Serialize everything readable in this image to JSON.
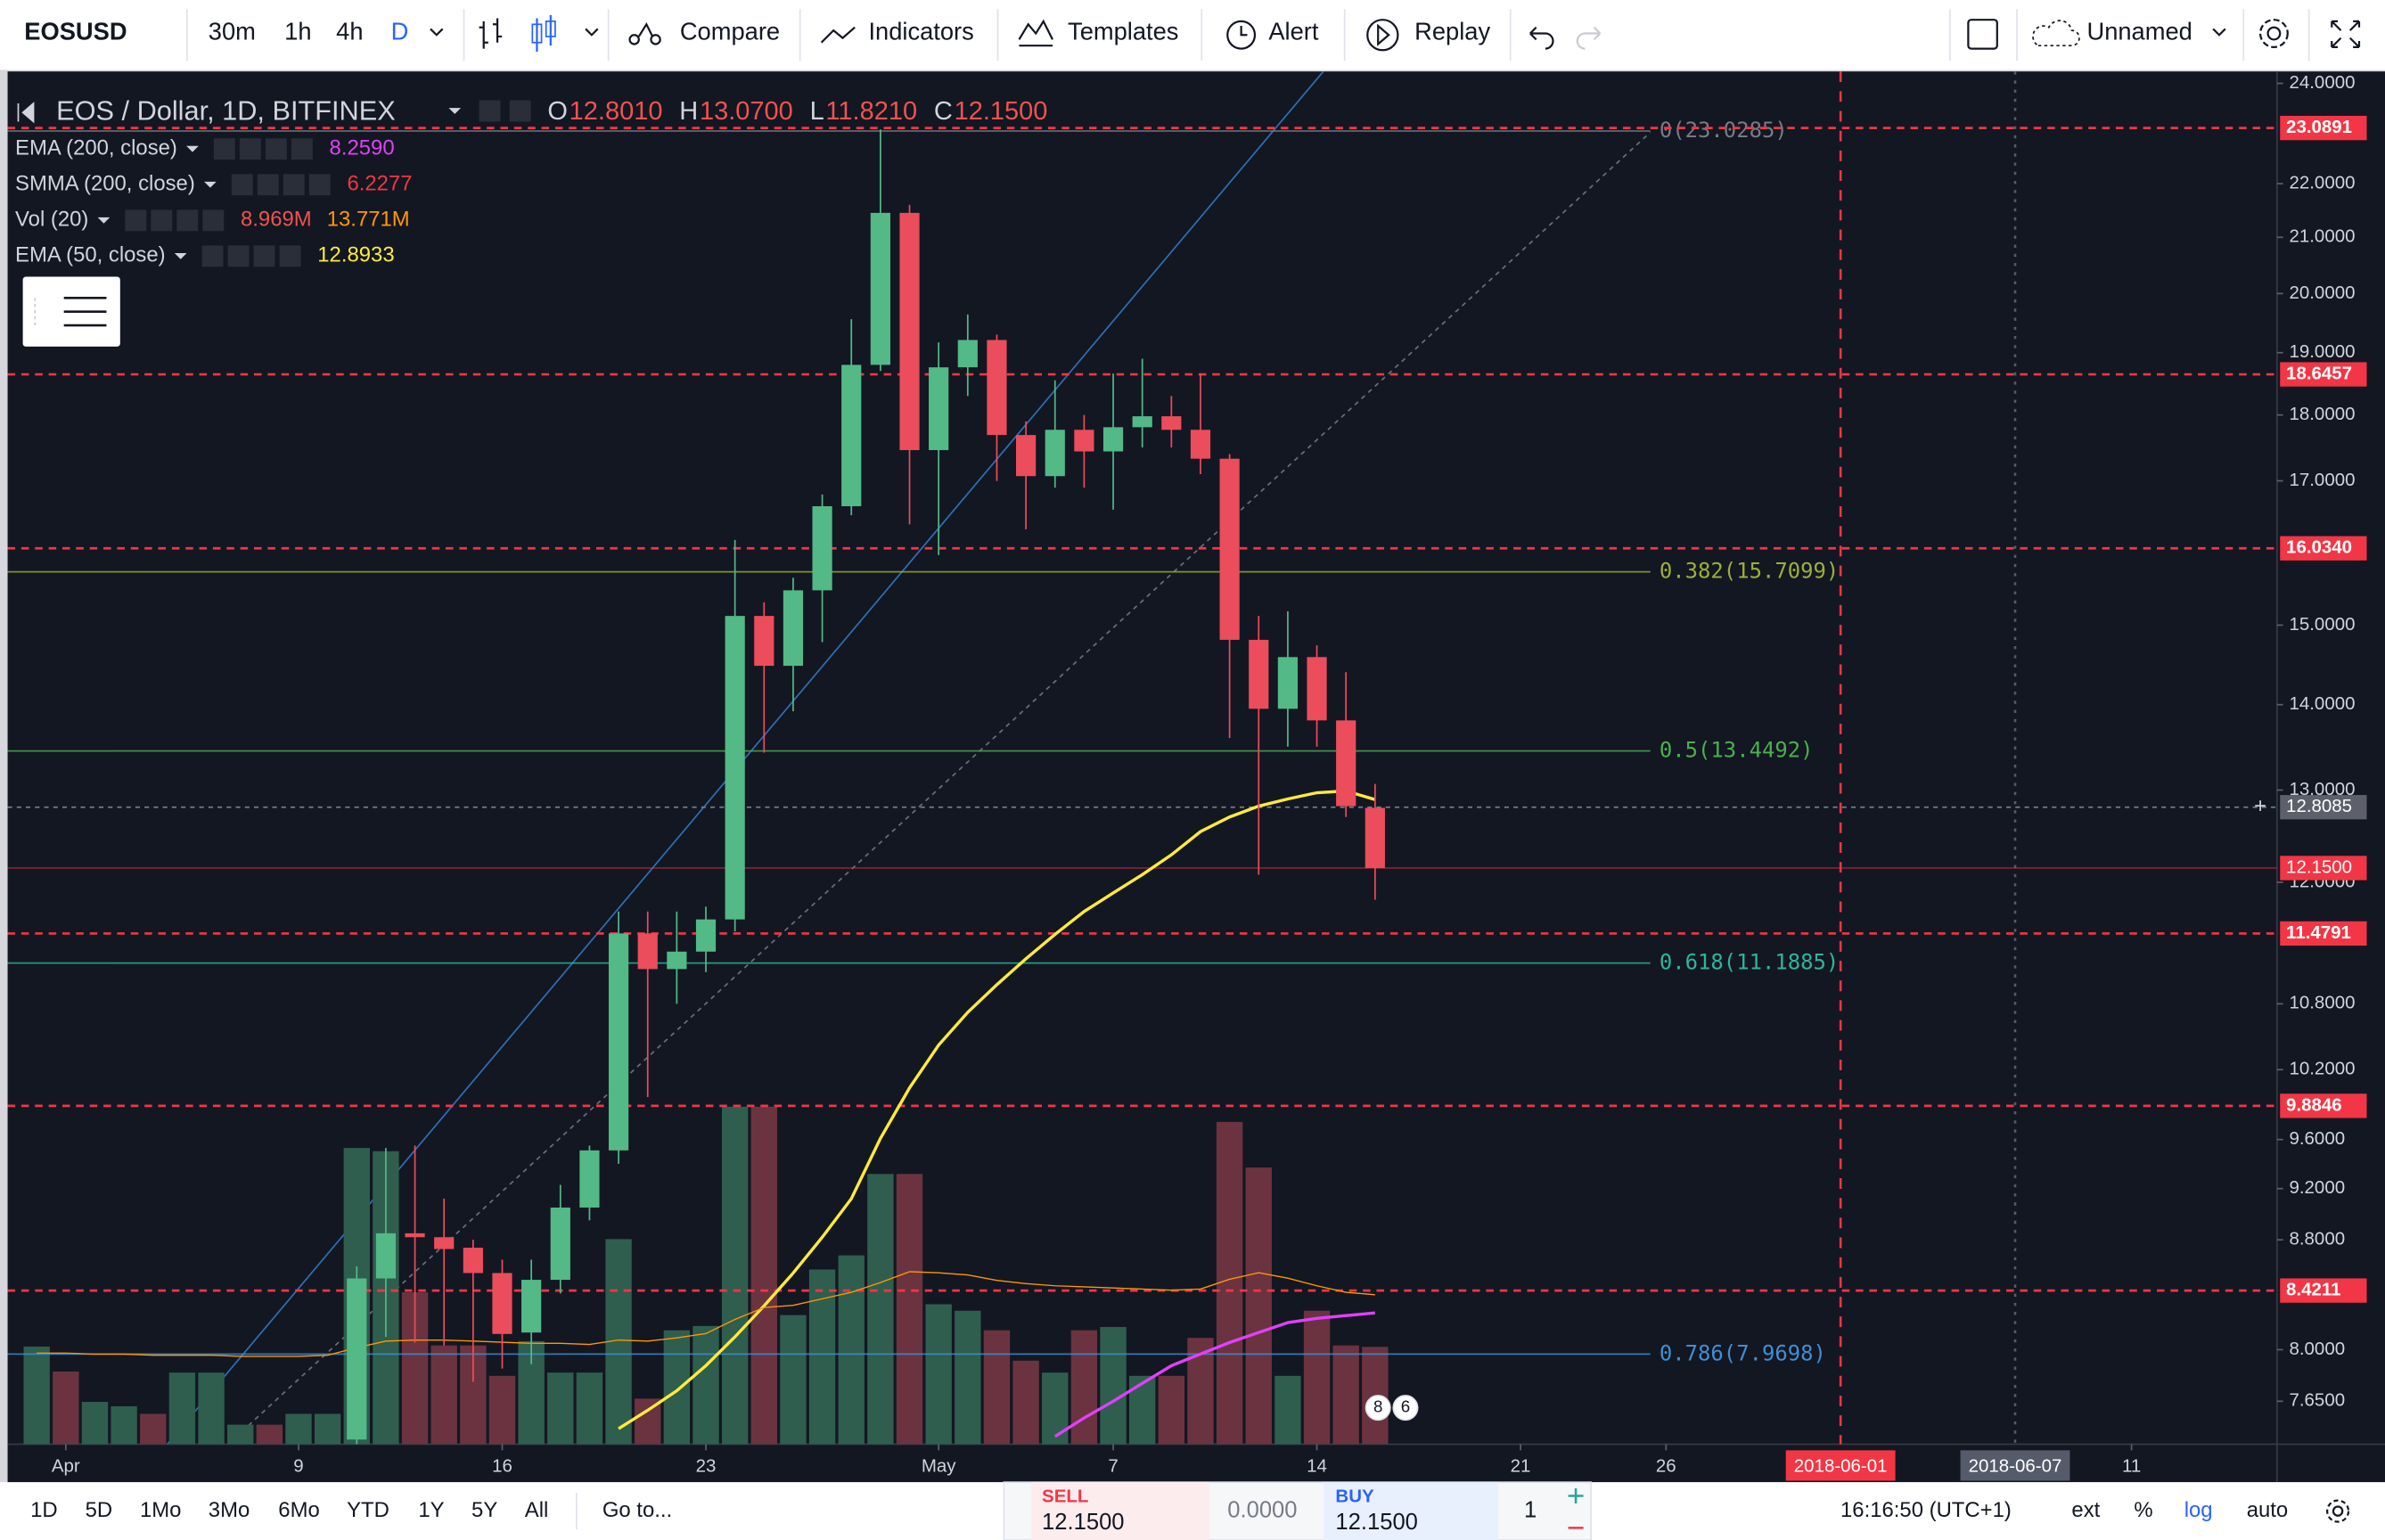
{
  "toolbar": {
    "symbol": "EOSUSD",
    "intervals": [
      "30m",
      "1h",
      "4h",
      "D"
    ],
    "compare": "Compare",
    "indicators": "Indicators",
    "templates": "Templates",
    "alert": "Alert",
    "replay": "Replay",
    "layout": "Unnamed"
  },
  "legend": {
    "title": "EOS / Dollar, 1D, BITFINEX",
    "ohlc": [
      {
        "key": "O",
        "text": "12.8010"
      },
      {
        "key": "H",
        "text": "13.0700"
      },
      {
        "key": "L",
        "text": "11.8210"
      },
      {
        "key": "C",
        "text": "12.1500"
      }
    ],
    "ohlc_color": "#ef5350",
    "rows": [
      {
        "name": "EMA (200, close)",
        "labels": [
          {
            "text": "8.2590",
            "color": "#e040fb"
          }
        ]
      },
      {
        "name": "SMMA (200, close)",
        "labels": [
          {
            "text": "6.2277",
            "color": "#f23645"
          }
        ]
      },
      {
        "name": "Vol (20)",
        "labels": [
          {
            "text": "8.969M",
            "color": "#ef5350"
          },
          {
            "text": "13.771M",
            "color": "#ff9800"
          }
        ]
      },
      {
        "name": "EMA (50, close)",
        "labels": [
          {
            "text": "12.8933",
            "color": "#ffeb3b"
          }
        ]
      }
    ]
  },
  "chart_data": {
    "type": "candlestick",
    "log": true,
    "grid": false,
    "up_color": "#53b987",
    "down_color": "#eb4d5c",
    "x": [
      "2018-04-11",
      "2018-04-12",
      "2018-04-13",
      "2018-04-14",
      "2018-04-15",
      "2018-04-16",
      "2018-04-17",
      "2018-04-18",
      "2018-04-19",
      "2018-04-20",
      "2018-04-21",
      "2018-04-22",
      "2018-04-23",
      "2018-04-24",
      "2018-04-25",
      "2018-04-26",
      "2018-04-27",
      "2018-04-28",
      "2018-04-29",
      "2018-04-30",
      "2018-05-01",
      "2018-05-02",
      "2018-05-03",
      "2018-05-04",
      "2018-05-05",
      "2018-05-06",
      "2018-05-07",
      "2018-05-08",
      "2018-05-09",
      "2018-05-10",
      "2018-05-11",
      "2018-05-12",
      "2018-05-13",
      "2018-05-14",
      "2018-05-15",
      "2018-05-16"
    ],
    "open": [
      7.4,
      8.51,
      8.85,
      8.82,
      8.74,
      8.55,
      8.12,
      8.5,
      9.05,
      9.51,
      11.48,
      11.13,
      11.3,
      11.62,
      15.12,
      14.48,
      15.46,
      16.63,
      18.8,
      21.45,
      17.46,
      18.76,
      19.21,
      17.69,
      17.07,
      17.77,
      17.44,
      17.81,
      17.98,
      17.77,
      17.33,
      14.81,
      13.95,
      14.59,
      13.81,
      12.801
    ],
    "high": [
      8.6,
      9.53,
      9.55,
      9.12,
      8.8,
      8.65,
      8.65,
      9.23,
      9.55,
      11.7,
      11.7,
      11.7,
      11.75,
      16.15,
      15.3,
      15.63,
      16.8,
      19.56,
      23.06,
      21.6,
      19.17,
      19.64,
      19.3,
      17.9,
      18.55,
      18.0,
      18.66,
      18.9,
      18.3,
      18.66,
      17.4,
      15.12,
      15.18,
      14.74,
      14.4,
      13.07
    ],
    "low": [
      7.3,
      8.09,
      8.05,
      8.03,
      7.78,
      7.87,
      7.9,
      8.4,
      8.95,
      9.4,
      9.96,
      10.8,
      11.1,
      11.5,
      13.43,
      13.92,
      14.78,
      16.5,
      18.7,
      16.37,
      15.94,
      18.3,
      17.0,
      16.3,
      16.9,
      16.9,
      16.58,
      17.5,
      17.5,
      17.1,
      13.6,
      12.08,
      13.5,
      13.5,
      12.7,
      11.821
    ],
    "close": [
      8.51,
      8.85,
      8.82,
      8.73,
      8.55,
      8.11,
      8.5,
      9.05,
      9.51,
      11.48,
      11.13,
      11.3,
      11.62,
      15.12,
      14.48,
      15.46,
      16.63,
      18.8,
      21.45,
      17.46,
      18.76,
      19.21,
      17.69,
      17.07,
      17.77,
      17.44,
      17.81,
      17.98,
      17.77,
      17.33,
      14.81,
      13.95,
      14.59,
      13.81,
      12.82,
      12.15
    ],
    "xlim": [
      "2018-03-30",
      "2018-06-16"
    ],
    "xticks": [
      {
        "value": "2018-04-01",
        "label": "Apr"
      },
      {
        "value": "2018-04-09",
        "label": "9"
      },
      {
        "value": "2018-04-16",
        "label": "16"
      },
      {
        "value": "2018-04-23",
        "label": "23"
      },
      {
        "value": "2018-05-01",
        "label": "May"
      },
      {
        "value": "2018-05-07",
        "label": "7"
      },
      {
        "value": "2018-05-14",
        "label": "14"
      },
      {
        "value": "2018-05-21",
        "label": "21"
      },
      {
        "value": "2018-05-26",
        "label": "26"
      },
      {
        "value": "2018-06-11",
        "label": "11"
      }
    ],
    "vlines": [
      {
        "label": "2018-06-01",
        "color": "#f23645",
        "dash": "7,6"
      },
      {
        "label": "2018-06-07",
        "color": "#555b6b",
        "dash": "2,4"
      }
    ],
    "ylim": [
      7.37,
      24.25
    ],
    "yticks": [
      {
        "value": 24,
        "label": "24.0000"
      },
      {
        "value": 22,
        "label": "22.0000"
      },
      {
        "value": 21,
        "label": "21.0000"
      },
      {
        "value": 20,
        "label": "20.0000"
      },
      {
        "value": 19,
        "label": "19.0000"
      },
      {
        "value": 18,
        "label": "18.0000"
      },
      {
        "value": 17,
        "label": "17.0000"
      },
      {
        "value": 15,
        "label": "15.0000"
      },
      {
        "value": 14,
        "label": "14.0000"
      },
      {
        "value": 13,
        "label": "13.0000"
      },
      {
        "value": 12,
        "label": "12.0000"
      },
      {
        "value": 10.8,
        "label": "10.8000"
      },
      {
        "value": 10.2,
        "label": "10.2000"
      },
      {
        "value": 9.6,
        "label": "9.6000"
      },
      {
        "value": 9.2,
        "label": "9.2000"
      },
      {
        "value": 8.8,
        "label": "8.8000"
      },
      {
        "value": 8,
        "label": "8.0000"
      },
      {
        "value": 7.65,
        "label": "7.6500"
      }
    ],
    "levels": [
      {
        "value": 23.0891,
        "label": "23.0891"
      },
      {
        "value": 18.6457,
        "label": "18.6457"
      },
      {
        "value": 16.034,
        "label": "16.0340"
      },
      {
        "value": 11.4791,
        "label": "11.4791"
      },
      {
        "value": 9.8846,
        "label": "9.8846"
      },
      {
        "value": 8.4211,
        "label": "8.4211"
      }
    ],
    "level_color": "#f23645",
    "last_price": {
      "value": 12.15,
      "label": "12.1500",
      "color": "#f23645"
    },
    "crosshair": {
      "value": 12.8085,
      "label": "12.8085",
      "color": "#5d606b"
    },
    "fib": [
      {
        "value": 23.0285,
        "label": "0(23.0285)",
        "color": "#787b86"
      },
      {
        "value": 15.7099,
        "label": "0.382(15.7099)",
        "color": "#9eae3a"
      },
      {
        "value": 13.4492,
        "label": "0.5(13.4492)",
        "color": "#4caf50"
      },
      {
        "value": 11.1885,
        "label": "0.618(11.1885)",
        "color": "#2fb59c"
      },
      {
        "value": 7.9698,
        "label": "0.786(7.9698)",
        "color": "#3f8fd6"
      }
    ],
    "series": [
      {
        "color": "#ffeb3b",
        "width": 2,
        "x": [
          "2018-04-20",
          "2018-04-21",
          "2018-04-22",
          "2018-04-23",
          "2018-04-24",
          "2018-04-25",
          "2018-04-26",
          "2018-04-27",
          "2018-04-28",
          "2018-04-29",
          "2018-04-30",
          "2018-05-01",
          "2018-05-02",
          "2018-05-03",
          "2018-05-04",
          "2018-05-05",
          "2018-05-06",
          "2018-05-07",
          "2018-05-08",
          "2018-05-09",
          "2018-05-10",
          "2018-05-11",
          "2018-05-12",
          "2018-05-13",
          "2018-05-14",
          "2018-05-15",
          "2018-05-16"
        ],
        "values": [
          7.47,
          7.59,
          7.72,
          7.89,
          8.09,
          8.31,
          8.55,
          8.82,
          9.12,
          9.61,
          10.04,
          10.42,
          10.72,
          10.98,
          11.23,
          11.47,
          11.7,
          11.89,
          12.08,
          12.29,
          12.54,
          12.7,
          12.82,
          12.9,
          12.97,
          12.99,
          12.8933
        ]
      },
      {
        "color": "#e040fb",
        "width": 2,
        "x": [
          "2018-05-05",
          "2018-05-06",
          "2018-05-07",
          "2018-05-08",
          "2018-05-09",
          "2018-05-10",
          "2018-05-11",
          "2018-05-12",
          "2018-05-13",
          "2018-05-14",
          "2018-05-15",
          "2018-05-16"
        ],
        "values": [
          7.42,
          7.54,
          7.65,
          7.77,
          7.89,
          7.97,
          8.05,
          8.12,
          8.19,
          8.22,
          8.24,
          8.259
        ]
      },
      {
        "color": "#ff9800",
        "width": 0.8,
        "axis": "volume",
        "x": [
          "2018-03-31",
          "2018-04-01",
          "2018-04-02",
          "2018-04-03",
          "2018-04-04",
          "2018-04-05",
          "2018-04-06",
          "2018-04-07",
          "2018-04-08",
          "2018-04-09",
          "2018-04-10",
          "2018-04-11",
          "2018-04-12",
          "2018-04-13",
          "2018-04-14",
          "2018-04-15",
          "2018-04-16",
          "2018-04-17",
          "2018-04-18",
          "2018-04-19",
          "2018-04-20",
          "2018-04-21",
          "2018-04-22",
          "2018-04-23",
          "2018-04-24",
          "2018-04-25",
          "2018-04-26",
          "2018-04-27",
          "2018-04-28",
          "2018-04-29",
          "2018-04-30",
          "2018-05-01",
          "2018-05-02",
          "2018-05-03",
          "2018-05-04",
          "2018-05-05",
          "2018-05-06",
          "2018-05-07",
          "2018-05-08",
          "2018-05-09",
          "2018-05-10",
          "2018-05-11",
          "2018-05-12",
          "2018-05-13",
          "2018-05-14",
          "2018-05-15",
          "2018-05-16"
        ],
        "values": [
          8.4,
          8.4,
          8.3,
          8.3,
          8.2,
          8.2,
          8.2,
          8.1,
          8.1,
          8.1,
          8.2,
          8.9,
          9.5,
          9.6,
          9.6,
          9.5,
          9.4,
          9.3,
          9.3,
          9.2,
          9.6,
          9.5,
          9.8,
          10.2,
          11.5,
          12.6,
          12.8,
          13.4,
          14.0,
          14.9,
          15.9,
          15.8,
          15.6,
          15.1,
          14.8,
          14.6,
          14.5,
          14.4,
          14.3,
          14.2,
          14.3,
          15.2,
          15.8,
          15.3,
          14.6,
          14.0,
          13.771
        ]
      }
    ],
    "volume": {
      "ylim": [
        0,
        126.5
      ],
      "x": [
        "2018-03-31",
        "2018-04-01",
        "2018-04-02",
        "2018-04-03",
        "2018-04-04",
        "2018-04-05",
        "2018-04-06",
        "2018-04-07",
        "2018-04-08",
        "2018-04-09",
        "2018-04-10",
        "2018-04-11",
        "2018-04-12",
        "2018-04-13",
        "2018-04-14",
        "2018-04-15",
        "2018-04-16",
        "2018-04-17",
        "2018-04-18",
        "2018-04-19",
        "2018-04-20",
        "2018-04-21",
        "2018-04-22",
        "2018-04-23",
        "2018-04-24",
        "2018-04-25",
        "2018-04-26",
        "2018-04-27",
        "2018-04-28",
        "2018-04-29",
        "2018-04-30",
        "2018-05-01",
        "2018-05-02",
        "2018-05-03",
        "2018-05-04",
        "2018-05-05",
        "2018-05-06",
        "2018-05-07",
        "2018-05-08",
        "2018-05-09",
        "2018-05-10",
        "2018-05-11",
        "2018-05-12",
        "2018-05-13",
        "2018-05-14",
        "2018-05-15",
        "2018-05-16"
      ],
      "values": [
        9.0,
        6.7,
        3.9,
        3.5,
        2.8,
        6.6,
        6.6,
        1.8,
        1.8,
        2.8,
        2.8,
        27.3,
        27.0,
        14.0,
        9.1,
        9.1,
        6.3,
        9.5,
        6.6,
        6.6,
        18.9,
        4.2,
        10.5,
        10.9,
        31.1,
        31.1,
        11.9,
        16.1,
        17.4,
        24.9,
        24.9,
        12.9,
        12.3,
        10.5,
        7.7,
        6.6,
        10.5,
        10.8,
        6.3,
        6.3,
        9.8,
        29.7,
        25.5,
        6.3,
        12.3,
        9.1,
        8.969
      ],
      "colors": [
        "#2f5e4e",
        "#6b3340",
        "#2f5e4e",
        "#2f5e4e",
        "#6b3340",
        "#2f5e4e",
        "#2f5e4e",
        "#2f5e4e",
        "#6b3340",
        "#2f5e4e",
        "#2f5e4e",
        "#2f5e4e",
        "#2f5e4e",
        "#6b3340",
        "#6b3340",
        "#6b3340",
        "#6b3340",
        "#2f5e4e",
        "#2f5e4e",
        "#2f5e4e",
        "#2f5e4e",
        "#6b3340",
        "#2f5e4e",
        "#2f5e4e",
        "#2f5e4e",
        "#6b3340",
        "#2f5e4e",
        "#2f5e4e",
        "#2f5e4e",
        "#2f5e4e",
        "#6b3340",
        "#2f5e4e",
        "#2f5e4e",
        "#6b3340",
        "#6b3340",
        "#2f5e4e",
        "#6b3340",
        "#2f5e4e",
        "#2f5e4e",
        "#6b3340",
        "#6b3340",
        "#6b3340",
        "#6b3340",
        "#2f5e4e",
        "#6b3340",
        "#6b3340",
        "#6b3340"
      ]
    },
    "event_badges": [
      "8",
      "6"
    ]
  },
  "bottom": {
    "ranges": [
      "1D",
      "5D",
      "1Mo",
      "3Mo",
      "6Mo",
      "YTD",
      "1Y",
      "5Y",
      "All"
    ],
    "goto": "Go to...",
    "sell": "SELL",
    "sell_price": "12.1500",
    "spread": "0.0000",
    "buy": "BUY",
    "buy_price": "12.1500",
    "quantity": "1",
    "time": "16:16:50 (UTC+1)",
    "ext": "ext",
    "percent": "%",
    "log": "log",
    "auto": "auto"
  }
}
